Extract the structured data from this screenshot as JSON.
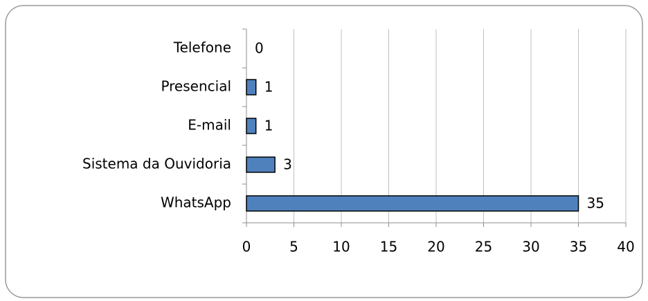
{
  "chart_data": {
    "type": "bar",
    "orientation": "horizontal",
    "categories": [
      "Telefone",
      "Presencial",
      "E-mail",
      "Sistema da Ouvidoria",
      "WhatsApp"
    ],
    "values": [
      0,
      1,
      1,
      3,
      35
    ],
    "color": "#4f81bd",
    "xlim": [
      0,
      40
    ],
    "xticks": [
      0,
      5,
      10,
      15,
      20,
      25,
      30,
      35,
      40
    ],
    "grid": true
  }
}
